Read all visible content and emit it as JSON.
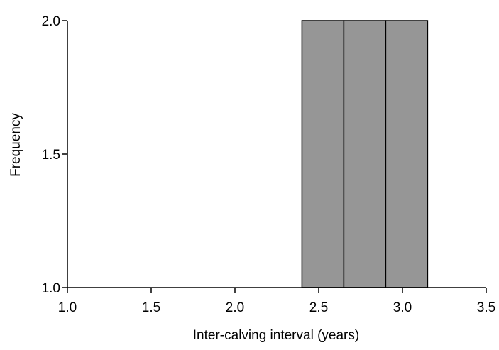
{
  "chart_data": {
    "type": "bar",
    "subtype": "histogram",
    "xlabel": "Inter-calving interval (years)",
    "ylabel": "Frequency",
    "xlim": [
      1.0,
      3.5
    ],
    "ylim": [
      1.0,
      2.0
    ],
    "x_ticks": [
      "1.0",
      "1.5",
      "2.0",
      "2.5",
      "3.0",
      "3.5"
    ],
    "y_ticks": [
      "1.0",
      "1.5",
      "2.0"
    ],
    "bins": [
      {
        "start": 2.4,
        "end": 2.65,
        "count": 2
      },
      {
        "start": 2.65,
        "end": 2.9,
        "count": 2
      },
      {
        "start": 2.9,
        "end": 3.15,
        "count": 2
      }
    ],
    "bar_color": "#969696",
    "edge_color": "#000000",
    "grid": false
  }
}
